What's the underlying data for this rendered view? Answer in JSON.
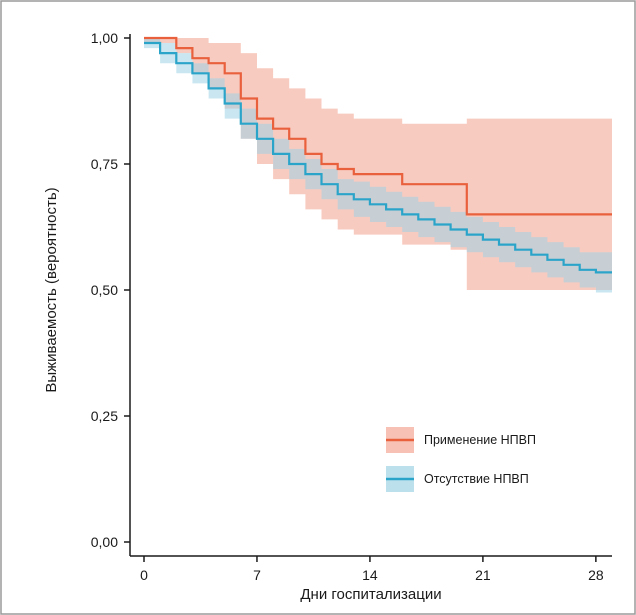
{
  "chart_data": {
    "type": "line",
    "chart_kind": "kaplan-meier survival curve with confidence bands",
    "title": "",
    "xlabel": "Дни госпитализации",
    "ylabel": "Выживаемость (вероятность)",
    "xlim": [
      0,
      29
    ],
    "ylim": [
      0,
      1
    ],
    "x_ticks": [
      0,
      7,
      14,
      21,
      28
    ],
    "x_tick_labels": [
      "0",
      "7",
      "14",
      "21",
      "28"
    ],
    "y_ticks": [
      0,
      0.25,
      0.5,
      0.75,
      1.0
    ],
    "y_tick_labels": [
      "0,00",
      "0,25",
      "0,50",
      "0,75",
      "1,00"
    ],
    "grid": false,
    "legend_position": "bottom-right",
    "series": [
      {
        "name": "Применение НПВП",
        "color": "#e8603c",
        "band_color": "#f4a896",
        "x": [
          0,
          2,
          3,
          4,
          5,
          6,
          7,
          8,
          9,
          10,
          11,
          12,
          13,
          16,
          17,
          18,
          19,
          20,
          29
        ],
        "y": [
          1.0,
          0.98,
          0.96,
          0.95,
          0.93,
          0.88,
          0.84,
          0.82,
          0.8,
          0.77,
          0.75,
          0.74,
          0.73,
          0.71,
          0.71,
          0.71,
          0.71,
          0.65,
          0.65
        ],
        "lower": [
          0.99,
          0.97,
          0.93,
          0.9,
          0.86,
          0.8,
          0.75,
          0.72,
          0.69,
          0.66,
          0.64,
          0.62,
          0.61,
          0.59,
          0.59,
          0.59,
          0.58,
          0.5,
          0.5
        ],
        "upper": [
          1.0,
          1.0,
          1.0,
          0.99,
          0.99,
          0.97,
          0.94,
          0.92,
          0.9,
          0.88,
          0.86,
          0.85,
          0.84,
          0.83,
          0.83,
          0.83,
          0.83,
          0.84,
          0.84
        ]
      },
      {
        "name": "Отсутствие НПВП",
        "color": "#2ba4c9",
        "band_color": "#9fd4e6",
        "x": [
          0,
          1,
          2,
          3,
          4,
          5,
          6,
          7,
          8,
          9,
          10,
          11,
          12,
          13,
          14,
          15,
          16,
          17,
          18,
          19,
          20,
          21,
          22,
          23,
          24,
          25,
          26,
          27,
          28,
          29
        ],
        "y": [
          0.99,
          0.97,
          0.95,
          0.93,
          0.9,
          0.87,
          0.83,
          0.8,
          0.77,
          0.75,
          0.73,
          0.71,
          0.69,
          0.68,
          0.67,
          0.66,
          0.65,
          0.64,
          0.63,
          0.62,
          0.61,
          0.6,
          0.59,
          0.58,
          0.57,
          0.56,
          0.55,
          0.54,
          0.535,
          0.535
        ],
        "lower": [
          0.98,
          0.95,
          0.93,
          0.91,
          0.88,
          0.84,
          0.8,
          0.77,
          0.74,
          0.72,
          0.7,
          0.68,
          0.66,
          0.645,
          0.635,
          0.625,
          0.615,
          0.605,
          0.595,
          0.585,
          0.575,
          0.565,
          0.555,
          0.545,
          0.535,
          0.525,
          0.515,
          0.505,
          0.495,
          0.495
        ],
        "upper": [
          1.0,
          0.99,
          0.97,
          0.95,
          0.92,
          0.89,
          0.86,
          0.83,
          0.8,
          0.78,
          0.76,
          0.74,
          0.72,
          0.715,
          0.705,
          0.695,
          0.685,
          0.675,
          0.665,
          0.655,
          0.645,
          0.635,
          0.625,
          0.615,
          0.605,
          0.595,
          0.585,
          0.575,
          0.575,
          0.575
        ]
      }
    ]
  }
}
